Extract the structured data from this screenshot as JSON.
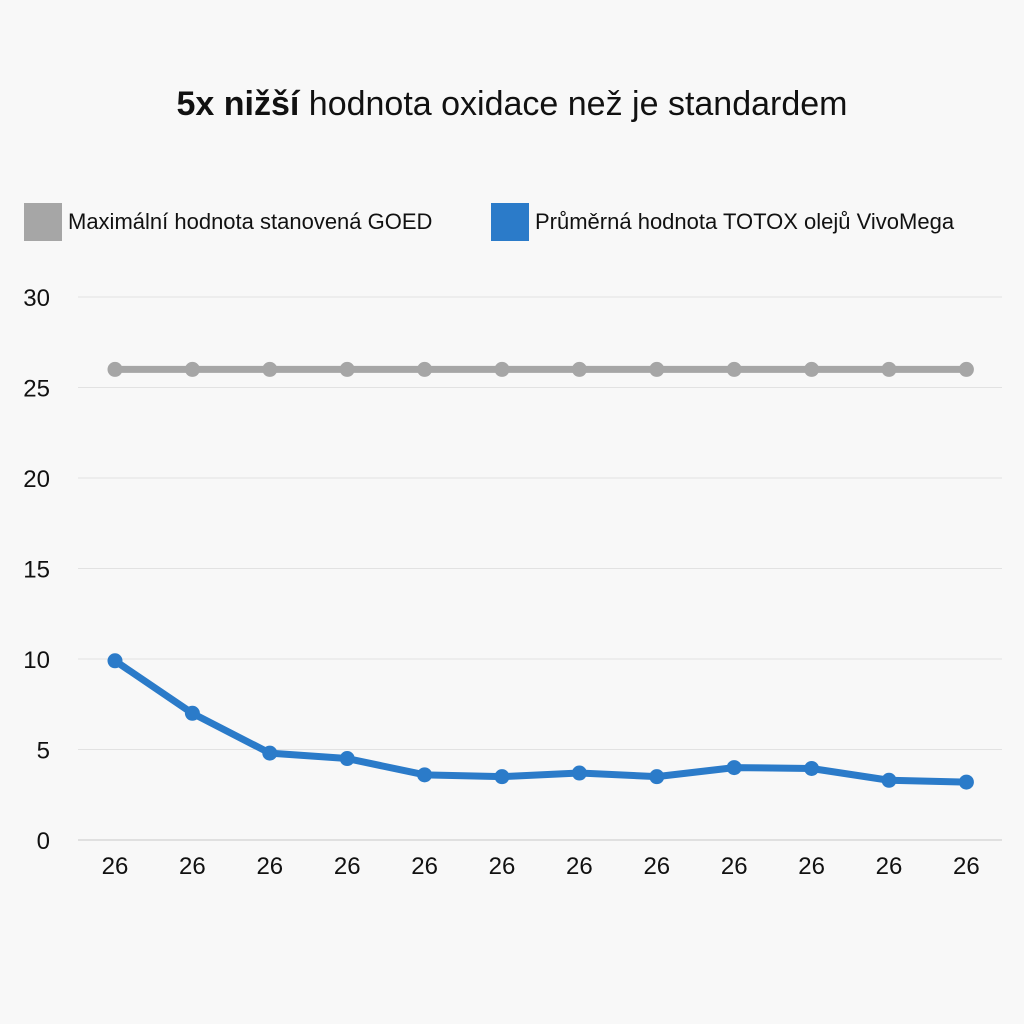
{
  "chart_data": {
    "type": "line",
    "title_bold": "5x nižší",
    "title_rest": " hodnota oxidace než je standardem",
    "categories": [
      "26",
      "26",
      "26",
      "26",
      "26",
      "26",
      "26",
      "26",
      "26",
      "26",
      "26",
      "26"
    ],
    "series": [
      {
        "name": "Maximální hodnota stanovená GOED",
        "color": "#a6a6a6",
        "values": [
          26,
          26,
          26,
          26,
          26,
          26,
          26,
          26,
          26,
          26,
          26,
          26
        ]
      },
      {
        "name": "Průměrná hodnota TOTOX olejů VivoMega",
        "color": "#2b7bc9",
        "values": [
          9.9,
          7.0,
          4.8,
          4.5,
          3.6,
          3.5,
          3.7,
          3.5,
          4.0,
          3.95,
          3.3,
          3.2
        ]
      }
    ],
    "ylim": [
      0,
      30
    ],
    "yticks": [
      0,
      5,
      10,
      15,
      20,
      25,
      30
    ],
    "grid": true,
    "legend_position": "top"
  }
}
